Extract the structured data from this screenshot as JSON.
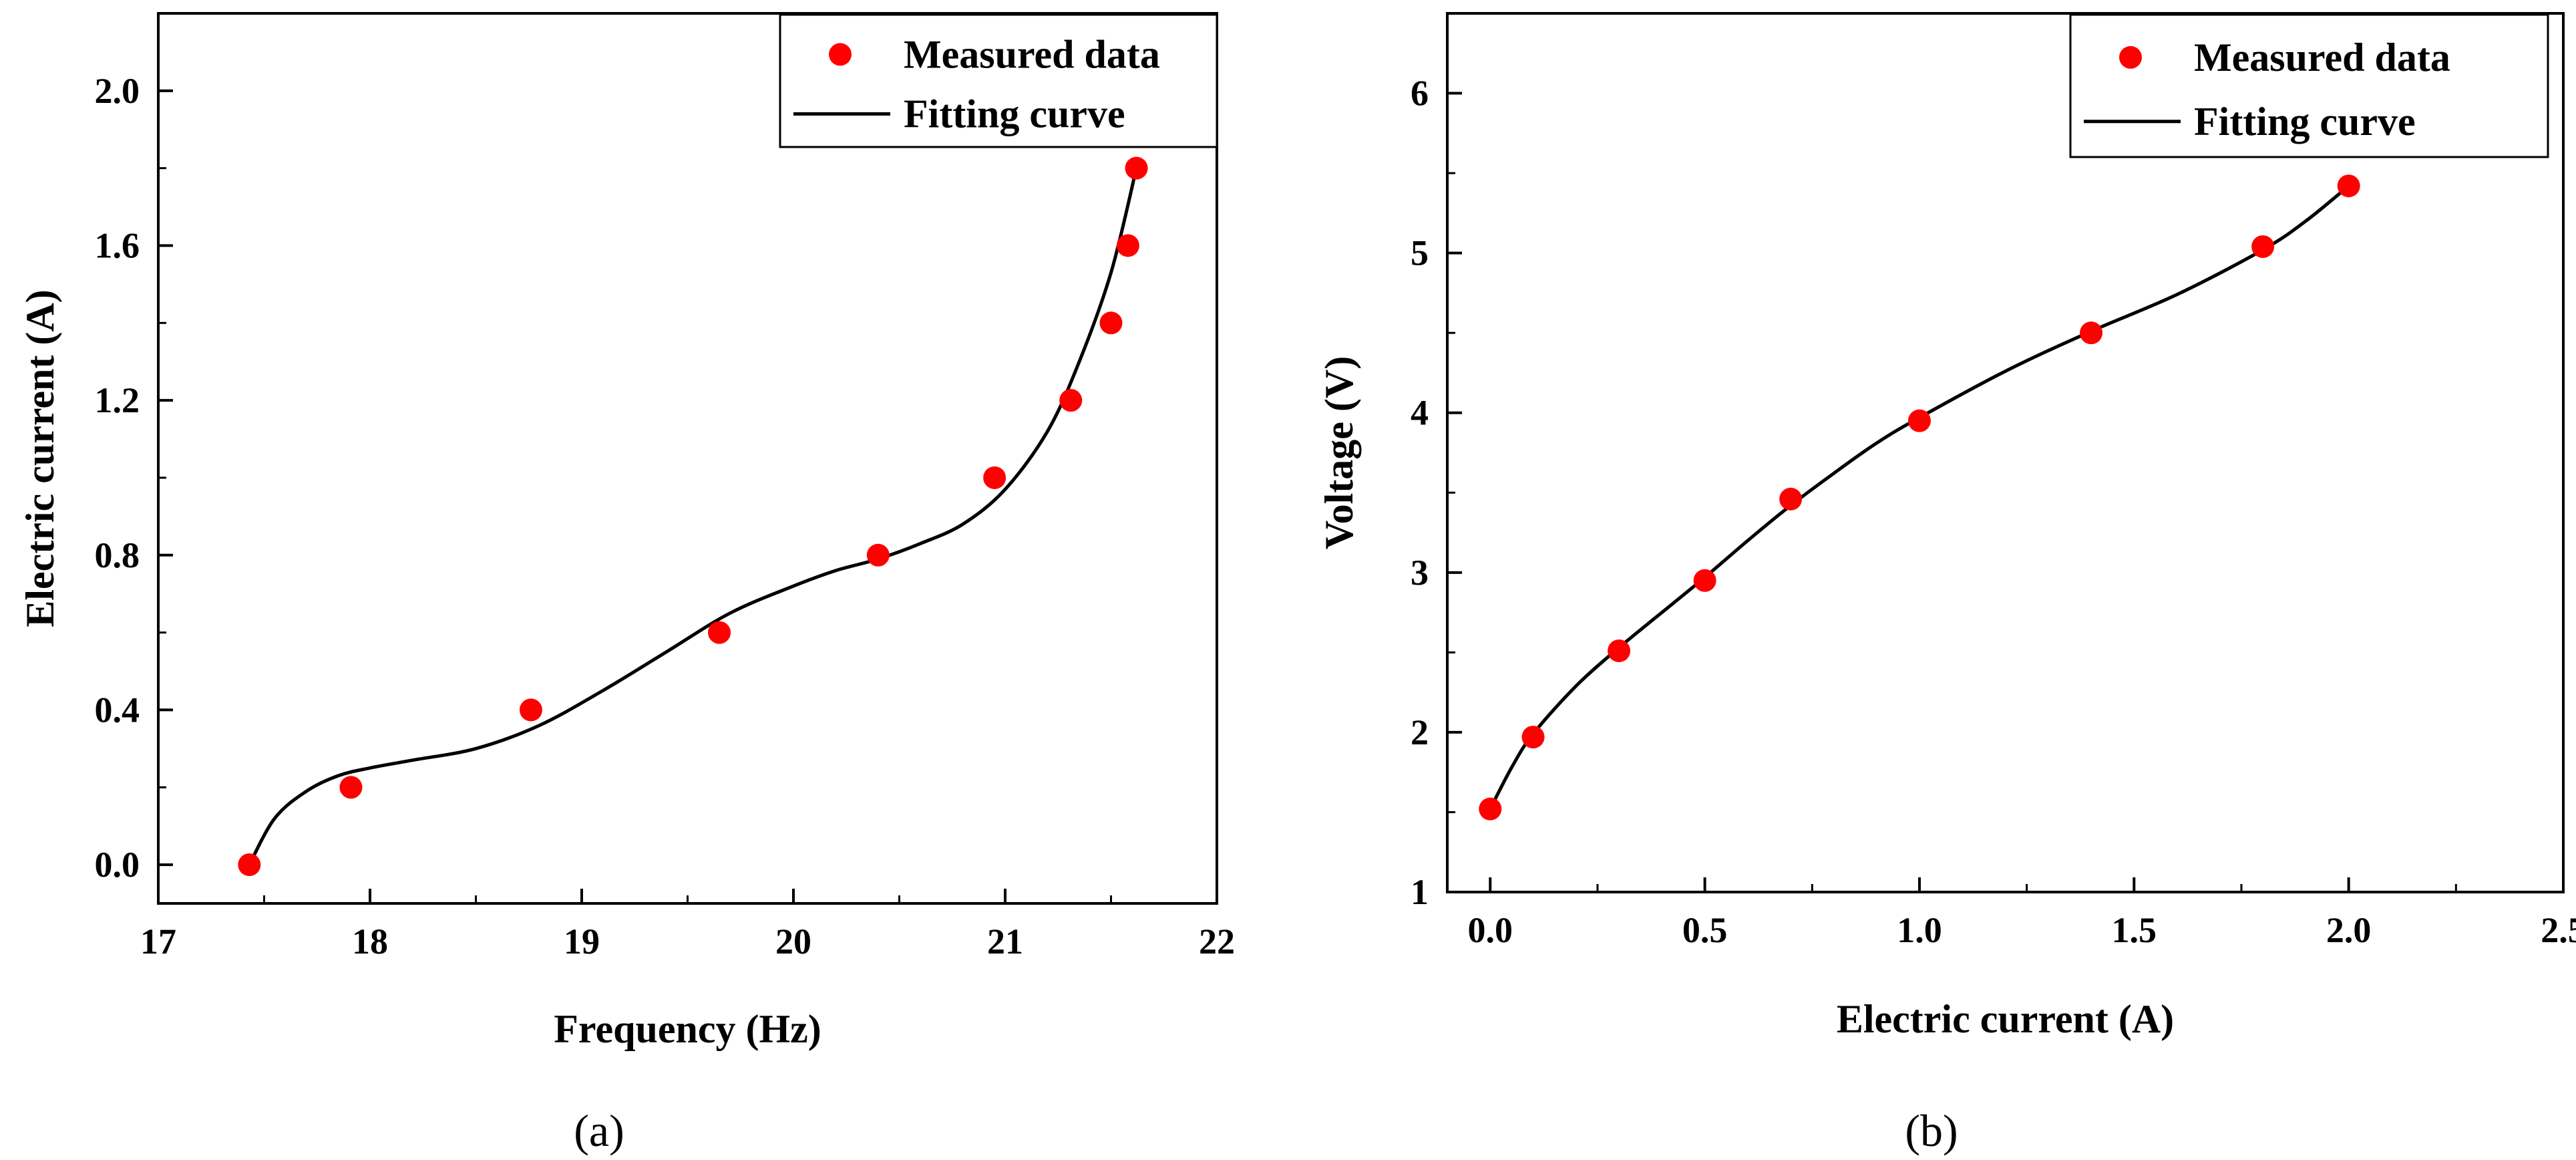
{
  "chart_data": [
    {
      "type": "scatter",
      "panel_label": "(a)",
      "xlabel": "Frequency (Hz)",
      "ylabel": "Electric current (A)",
      "xlim": [
        17,
        22
      ],
      "ylim": [
        -0.1,
        2.2
      ],
      "xticks": [
        17,
        18,
        19,
        20,
        21,
        22
      ],
      "yticks": [
        0.0,
        0.4,
        0.8,
        1.2,
        1.6,
        2.0
      ],
      "xtick_labels": [
        "17",
        "18",
        "19",
        "20",
        "21",
        "22"
      ],
      "ytick_labels": [
        "0.0",
        "0.4",
        "0.8",
        "1.2",
        "1.6",
        "2.0"
      ],
      "legend_position": "top-right",
      "series": [
        {
          "name": "Measured data",
          "kind": "markers",
          "color": "#ff0000",
          "x": [
            17.43,
            17.91,
            18.76,
            19.65,
            20.4,
            20.95,
            21.31,
            21.5,
            21.58,
            21.62
          ],
          "y": [
            0.0,
            0.2,
            0.4,
            0.6,
            0.8,
            1.0,
            1.2,
            1.4,
            1.6,
            1.8
          ]
        },
        {
          "name": "Fitting curve",
          "kind": "line",
          "color": "#000000",
          "x": [
            17.43,
            17.55,
            17.7,
            17.85,
            18.0,
            18.2,
            18.5,
            18.8,
            19.1,
            19.4,
            19.7,
            20.0,
            20.2,
            20.4,
            20.6,
            20.8,
            21.0,
            21.2,
            21.35,
            21.5,
            21.62
          ],
          "y": [
            0.0,
            0.12,
            0.19,
            0.23,
            0.25,
            0.27,
            0.3,
            0.36,
            0.45,
            0.55,
            0.65,
            0.72,
            0.76,
            0.79,
            0.83,
            0.88,
            0.97,
            1.12,
            1.3,
            1.53,
            1.8
          ]
        }
      ]
    },
    {
      "type": "scatter",
      "panel_label": "(b)",
      "xlabel": "Electric current (A)",
      "ylabel": "Voltage (V)",
      "xlim": [
        -0.1,
        2.5
      ],
      "ylim": [
        1,
        6.5
      ],
      "xticks": [
        0.0,
        0.5,
        1.0,
        1.5,
        2.0,
        2.5
      ],
      "yticks": [
        1,
        2,
        3,
        4,
        5,
        6
      ],
      "xtick_labels": [
        "0.0",
        "0.5",
        "1.0",
        "1.5",
        "2.0",
        "2.5"
      ],
      "ytick_labels": [
        "1",
        "2",
        "3",
        "4",
        "5",
        "6"
      ],
      "legend_position": "top-right",
      "series": [
        {
          "name": "Measured data",
          "kind": "markers",
          "color": "#ff0000",
          "x": [
            0.0,
            0.1,
            0.3,
            0.5,
            0.7,
            1.0,
            1.4,
            1.8,
            2.0
          ],
          "y": [
            1.52,
            1.97,
            2.51,
            2.95,
            3.46,
            3.95,
            4.5,
            5.04,
            5.42
          ]
        },
        {
          "name": "Fitting curve",
          "kind": "line",
          "color": "#000000",
          "x": [
            0.0,
            0.05,
            0.1,
            0.2,
            0.3,
            0.4,
            0.5,
            0.6,
            0.7,
            0.8,
            0.9,
            1.0,
            1.2,
            1.4,
            1.6,
            1.8,
            1.9,
            2.0
          ],
          "y": [
            1.52,
            1.78,
            1.99,
            2.29,
            2.53,
            2.75,
            2.97,
            3.2,
            3.42,
            3.62,
            3.81,
            3.97,
            4.26,
            4.51,
            4.74,
            5.02,
            5.2,
            5.42
          ]
        }
      ]
    }
  ]
}
